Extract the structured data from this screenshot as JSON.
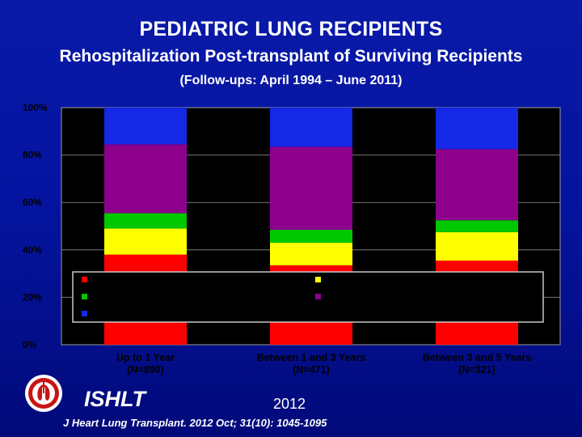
{
  "header": {
    "title": "PEDIATRIC LUNG RECIPIENTS",
    "subtitle": "Rehospitalization Post-transplant of Surviving Recipients",
    "followup": "(Follow-ups: April 1994 – June 2011)"
  },
  "footer": {
    "org": "ISHLT",
    "year": "2012",
    "citation": "J Heart Lung Transplant. 2012 Oct; 31(10): 1045-1095"
  },
  "colors": {
    "plot_background": "#000000",
    "legend_background": "#000000",
    "red": "#ff0000",
    "yellow": "#ffff00",
    "green": "#00c800",
    "purple": "#8c008c",
    "blue": "#1428e6"
  },
  "chart_data": {
    "type": "bar",
    "stacked": true,
    "categories": [
      "Up to 1 Year (N=890)",
      "Between 1 and 3 Years (N=471)",
      "Between 3 and 5 Years (N=321)"
    ],
    "series": [
      {
        "color": "#ff0000",
        "values": [
          38,
          33.5,
          35.5
        ]
      },
      {
        "color": "#ffff00",
        "values": [
          11,
          9.5,
          12
        ]
      },
      {
        "color": "#00c800",
        "values": [
          6.5,
          5.5,
          5
        ]
      },
      {
        "color": "#8c008c",
        "values": [
          29,
          35,
          30
        ]
      },
      {
        "color": "#1428e6",
        "values": [
          15.5,
          16.5,
          17.5
        ]
      }
    ],
    "ytick_labels": [
      "0%",
      "20%",
      "40%",
      "60%",
      "80%",
      "100%"
    ],
    "ylim": [
      0,
      100
    ],
    "grid": true,
    "legend": {
      "placement": "overlay-middle",
      "markers": [
        "#ff0000",
        "#ffff00",
        "#00c800",
        "#8c008c",
        "#1428e6"
      ]
    }
  }
}
